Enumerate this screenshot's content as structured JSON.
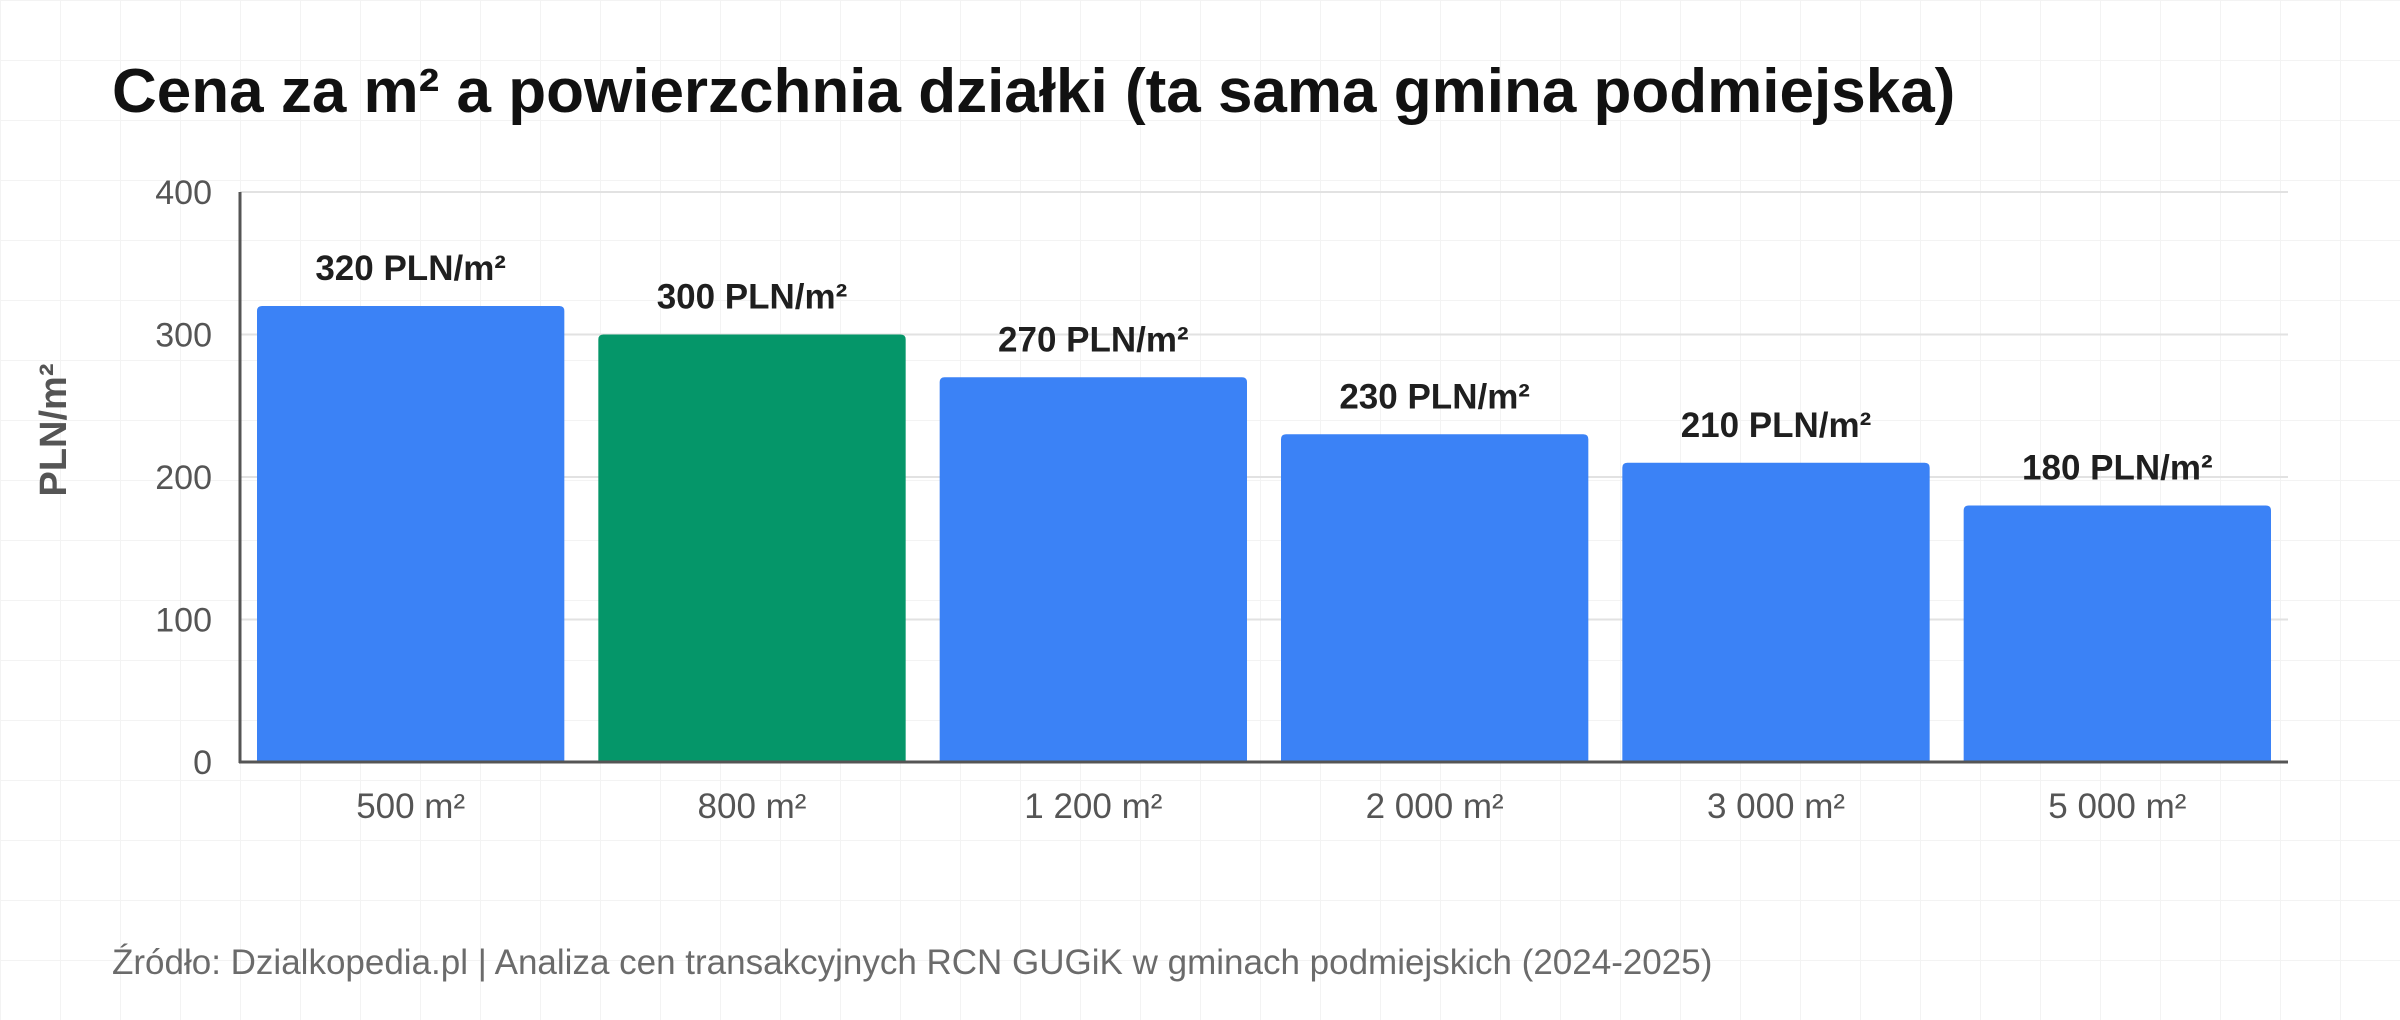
{
  "title": "Cena za m² a powierzchnia działki (ta sama gmina podmiejska)",
  "source": "Źródło: Dzialkopedia.pl | Analiza cen transakcyjnych RCN GUGiK w gminach podmiejskich (2024-2025)",
  "chart_data": {
    "type": "bar",
    "title": "Cena za m² a powierzchnia działki (ta sama gmina podmiejska)",
    "xlabel": "",
    "ylabel": "PLN/m²",
    "ylim": [
      0,
      400
    ],
    "yticks": [
      0,
      100,
      200,
      300,
      400
    ],
    "categories": [
      "500 m²",
      "800 m²",
      "1 200 m²",
      "2 000 m²",
      "3 000 m²",
      "5 000 m²"
    ],
    "values": [
      320,
      300,
      270,
      230,
      210,
      180
    ],
    "data_labels": [
      "320 PLN/m²",
      "300 PLN/m²",
      "270 PLN/m²",
      "230 PLN/m²",
      "210 PLN/m²",
      "180 PLN/m²"
    ],
    "highlight_index": 1,
    "colors": {
      "bar": "#3b82f6",
      "highlight": "#059669",
      "grid": "#e2e2e2",
      "axis": "#555555"
    },
    "grid": true,
    "legend": "none"
  }
}
